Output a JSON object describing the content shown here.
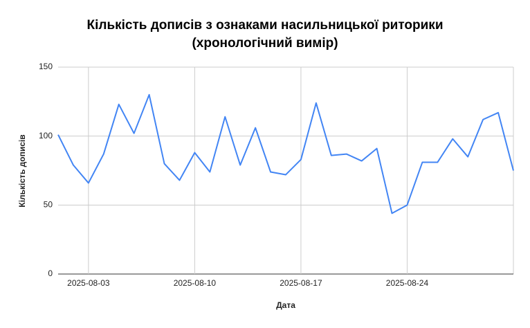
{
  "chart_data": {
    "type": "line",
    "title": [
      "Кількість дописів з ознаками насильницької риторики",
      "(хронологічний вимір)"
    ],
    "x_label": "Дата",
    "y_label": "Кількість дописів",
    "x": [
      "2025-08-01",
      "2025-08-02",
      "2025-08-03",
      "2025-08-04",
      "2025-08-05",
      "2025-08-06",
      "2025-08-07",
      "2025-08-08",
      "2025-08-09",
      "2025-08-10",
      "2025-08-11",
      "2025-08-12",
      "2025-08-13",
      "2025-08-14",
      "2025-08-15",
      "2025-08-16",
      "2025-08-17",
      "2025-08-18",
      "2025-08-19",
      "2025-08-20",
      "2025-08-21",
      "2025-08-22",
      "2025-08-23",
      "2025-08-24",
      "2025-08-25",
      "2025-08-26",
      "2025-08-27",
      "2025-08-28",
      "2025-08-29",
      "2025-08-30",
      "2025-08-31"
    ],
    "series": [
      {
        "color": "#4285f4",
        "values": [
          101,
          79,
          66,
          87,
          123,
          102,
          130,
          80,
          68,
          88,
          74,
          114,
          79,
          106,
          74,
          72,
          83,
          124,
          86,
          87,
          82,
          91,
          44,
          50,
          81,
          81,
          98,
          85,
          112,
          117,
          75
        ]
      }
    ],
    "xlim": [
      "2025-08-01",
      "2025-08-31"
    ],
    "xticks": [
      "2025-08-03",
      "2025-08-10",
      "2025-08-17",
      "2025-08-24"
    ],
    "ylim": [
      0,
      150
    ],
    "yticks": [
      0,
      50,
      100,
      150
    ],
    "grid": true
  }
}
